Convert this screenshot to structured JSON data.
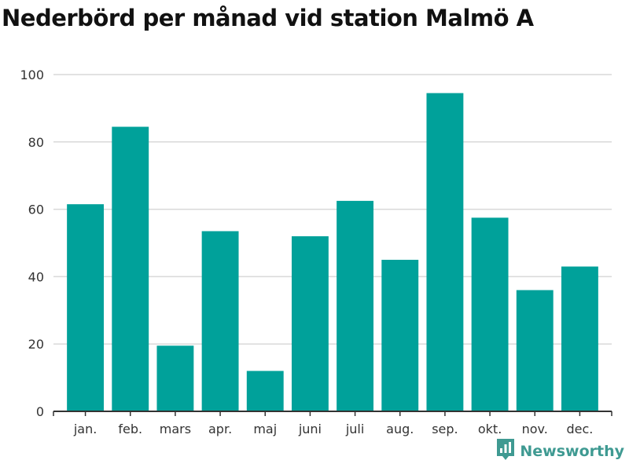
{
  "title": "Nederbörd per månad vid station Malmö A",
  "brand": {
    "name": "Newsworthy",
    "icon": "newsworthy-logo-icon",
    "color": "#3f9a92"
  },
  "colors": {
    "bar": "#00a19a",
    "grid": "#d9d9d9",
    "axis": "#333333",
    "text": "#333333"
  },
  "chart_data": {
    "type": "bar",
    "title": "Nederbörd per månad vid station Malmö A",
    "xlabel": "",
    "ylabel": "",
    "categories": [
      "jan.",
      "feb.",
      "mars",
      "apr.",
      "maj",
      "juni",
      "juli",
      "aug.",
      "sep.",
      "okt.",
      "nov.",
      "dec."
    ],
    "values": [
      61.5,
      84.5,
      19.5,
      53.5,
      12,
      52,
      62.5,
      45,
      94.5,
      57.5,
      36,
      43
    ],
    "ylim": [
      0,
      100
    ],
    "yticks": [
      0,
      20,
      40,
      60,
      80,
      100
    ],
    "grid": true,
    "legend": "none"
  }
}
